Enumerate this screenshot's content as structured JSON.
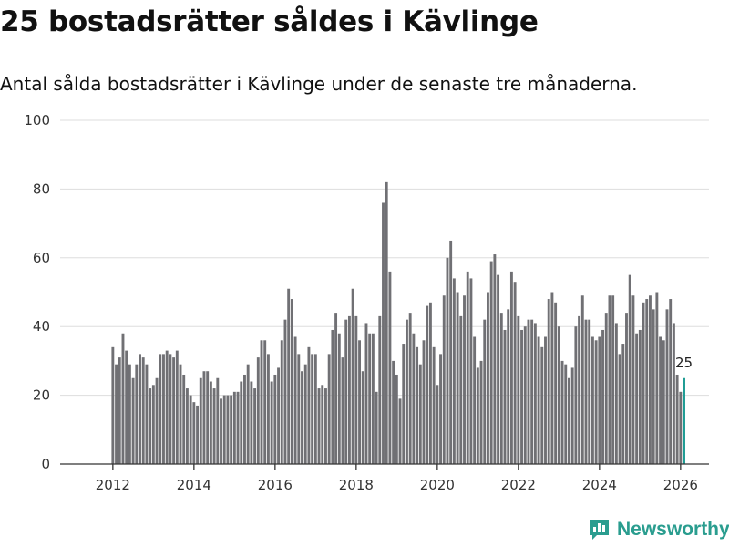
{
  "header": {
    "title": "25 bostadsrätter såldes i Kävlinge",
    "subtitle": "Antal sålda bostadsrätter i Kävlinge under de senaste tre månaderna."
  },
  "brand": {
    "name": "Newsworthy",
    "icon": "bar-chart-logo-icon",
    "color": "#2a9d8f"
  },
  "chart_data": {
    "type": "bar",
    "title": "",
    "xlabel": "",
    "ylabel": "",
    "x_start": 2012.0,
    "x_step": 0.08333,
    "xlim": [
      2010.7,
      2026.7
    ],
    "ylim": [
      0,
      100
    ],
    "yticks": [
      0,
      20,
      40,
      60,
      80,
      100
    ],
    "xticks": [
      2012,
      2014,
      2016,
      2018,
      2020,
      2022,
      2024,
      2026
    ],
    "grid": true,
    "bar_color": "#707074",
    "highlight_color": "#1f9c94",
    "highlight_label": "25",
    "values": [
      34,
      29,
      31,
      38,
      33,
      29,
      25,
      29,
      32,
      31,
      29,
      22,
      23,
      25,
      32,
      32,
      33,
      32,
      31,
      33,
      29,
      26,
      22,
      20,
      18,
      17,
      25,
      27,
      27,
      24,
      22,
      25,
      19,
      20,
      20,
      20,
      21,
      21,
      24,
      26,
      29,
      24,
      22,
      31,
      36,
      36,
      32,
      24,
      26,
      28,
      36,
      42,
      51,
      48,
      37,
      32,
      27,
      29,
      34,
      32,
      32,
      22,
      23,
      22,
      32,
      39,
      44,
      38,
      31,
      42,
      43,
      51,
      43,
      36,
      27,
      41,
      38,
      38,
      21,
      43,
      76,
      82,
      56,
      30,
      26,
      19,
      35,
      42,
      44,
      38,
      34,
      29,
      36,
      46,
      47,
      34,
      23,
      32,
      49,
      60,
      65,
      54,
      50,
      43,
      49,
      56,
      54,
      37,
      28,
      30,
      42,
      50,
      59,
      61,
      55,
      44,
      39,
      45,
      56,
      53,
      43,
      39,
      40,
      42,
      42,
      41,
      37,
      34,
      37,
      48,
      50,
      47,
      40,
      30,
      29,
      25,
      28,
      40,
      43,
      49,
      42,
      42,
      37,
      36,
      37,
      39,
      44,
      49,
      49,
      41,
      32,
      35,
      44,
      55,
      49,
      38,
      39,
      47,
      48,
      49,
      45,
      50,
      37,
      36,
      45,
      48,
      41,
      26,
      21,
      25
    ]
  }
}
